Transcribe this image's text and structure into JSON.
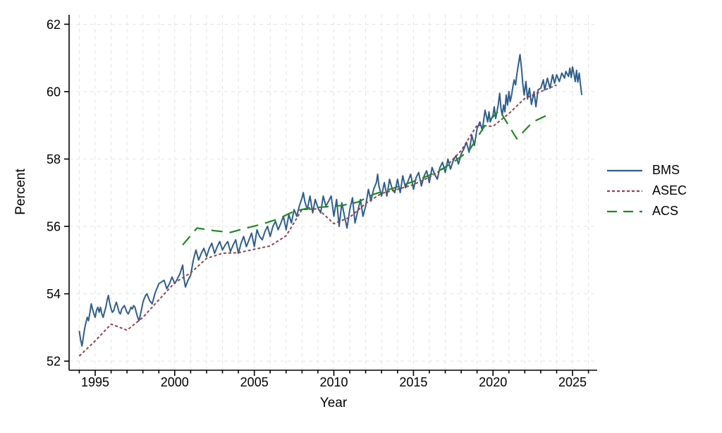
{
  "chart_data": {
    "type": "line",
    "xlabel": "Year",
    "ylabel": "Percent",
    "x_domain": [
      1993.36,
      2026.55
    ],
    "y_domain": [
      51.73,
      62.28
    ],
    "x_major_ticks": [
      1995,
      2000,
      2005,
      2010,
      2015,
      2020,
      2025
    ],
    "x_minor_ticks_range": [
      1994,
      2026
    ],
    "y_ticks": [
      52,
      54,
      56,
      58,
      60,
      62
    ],
    "grid": {
      "vertical": "every-year",
      "horizontal": "every-y-tick",
      "color": "#e4e4e4",
      "dash": "5 5"
    },
    "legend_position": "right-outside",
    "axis_color": "#000000",
    "series": [
      {
        "name": "BMS",
        "color": "#2f5e8d",
        "dash": "solid",
        "width": 2,
        "points": [
          [
            1994.0,
            52.9
          ],
          [
            1994.08,
            52.65
          ],
          [
            1994.17,
            52.45
          ],
          [
            1994.25,
            52.7
          ],
          [
            1994.33,
            52.95
          ],
          [
            1994.42,
            53.15
          ],
          [
            1994.5,
            53.3
          ],
          [
            1994.58,
            53.2
          ],
          [
            1994.67,
            53.45
          ],
          [
            1994.75,
            53.7
          ],
          [
            1994.83,
            53.55
          ],
          [
            1994.92,
            53.4
          ],
          [
            1995.0,
            53.3
          ],
          [
            1995.08,
            53.5
          ],
          [
            1995.17,
            53.6
          ],
          [
            1995.25,
            53.45
          ],
          [
            1995.33,
            53.6
          ],
          [
            1995.42,
            53.4
          ],
          [
            1995.5,
            53.3
          ],
          [
            1995.58,
            53.45
          ],
          [
            1995.67,
            53.6
          ],
          [
            1995.75,
            53.8
          ],
          [
            1995.83,
            53.95
          ],
          [
            1995.92,
            53.7
          ],
          [
            1996.0,
            53.55
          ],
          [
            1996.08,
            53.45
          ],
          [
            1996.17,
            53.5
          ],
          [
            1996.25,
            53.65
          ],
          [
            1996.33,
            53.75
          ],
          [
            1996.42,
            53.6
          ],
          [
            1996.5,
            53.45
          ],
          [
            1996.58,
            53.4
          ],
          [
            1996.67,
            53.55
          ],
          [
            1996.75,
            53.6
          ],
          [
            1996.83,
            53.65
          ],
          [
            1996.92,
            53.55
          ],
          [
            1997.0,
            53.45
          ],
          [
            1997.08,
            53.4
          ],
          [
            1997.17,
            53.5
          ],
          [
            1997.25,
            53.6
          ],
          [
            1997.33,
            53.55
          ],
          [
            1997.42,
            53.65
          ],
          [
            1997.5,
            53.6
          ],
          [
            1997.58,
            53.45
          ],
          [
            1997.67,
            53.3
          ],
          [
            1997.75,
            53.2
          ],
          [
            1997.83,
            53.35
          ],
          [
            1997.92,
            53.55
          ],
          [
            1998.0,
            53.75
          ],
          [
            1998.08,
            53.85
          ],
          [
            1998.17,
            53.95
          ],
          [
            1998.25,
            54.0
          ],
          [
            1998.33,
            53.9
          ],
          [
            1998.42,
            53.8
          ],
          [
            1998.5,
            53.75
          ],
          [
            1998.58,
            53.7
          ],
          [
            1998.67,
            53.85
          ],
          [
            1998.75,
            54.0
          ],
          [
            1998.83,
            54.1
          ],
          [
            1998.92,
            54.2
          ],
          [
            1999.0,
            54.3
          ],
          [
            1999.17,
            54.35
          ],
          [
            1999.33,
            54.4
          ],
          [
            1999.5,
            54.15
          ],
          [
            1999.67,
            54.3
          ],
          [
            1999.83,
            54.5
          ],
          [
            2000.0,
            54.3
          ],
          [
            2000.17,
            54.45
          ],
          [
            2000.33,
            54.6
          ],
          [
            2000.5,
            54.85
          ],
          [
            2000.58,
            54.45
          ],
          [
            2000.67,
            54.2
          ],
          [
            2000.83,
            54.4
          ],
          [
            2001.0,
            54.55
          ],
          [
            2001.17,
            55.0
          ],
          [
            2001.33,
            55.3
          ],
          [
            2001.5,
            55.0
          ],
          [
            2001.67,
            55.2
          ],
          [
            2001.83,
            55.35
          ],
          [
            2002.0,
            55.1
          ],
          [
            2002.17,
            55.35
          ],
          [
            2002.33,
            55.5
          ],
          [
            2002.5,
            55.2
          ],
          [
            2002.67,
            55.4
          ],
          [
            2002.83,
            55.55
          ],
          [
            2003.0,
            55.3
          ],
          [
            2003.17,
            55.45
          ],
          [
            2003.33,
            55.55
          ],
          [
            2003.5,
            55.25
          ],
          [
            2003.67,
            55.45
          ],
          [
            2003.83,
            55.6
          ],
          [
            2004.0,
            55.2
          ],
          [
            2004.17,
            55.5
          ],
          [
            2004.33,
            55.7
          ],
          [
            2004.5,
            55.4
          ],
          [
            2004.67,
            55.6
          ],
          [
            2004.83,
            55.8
          ],
          [
            2005.0,
            55.4
          ],
          [
            2005.17,
            55.9
          ],
          [
            2005.33,
            55.7
          ],
          [
            2005.5,
            55.6
          ],
          [
            2005.67,
            55.85
          ],
          [
            2005.83,
            56.0
          ],
          [
            2006.0,
            55.7
          ],
          [
            2006.17,
            56.0
          ],
          [
            2006.33,
            56.15
          ],
          [
            2006.5,
            55.9
          ],
          [
            2006.67,
            56.1
          ],
          [
            2006.83,
            56.3
          ],
          [
            2007.0,
            55.9
          ],
          [
            2007.17,
            56.35
          ],
          [
            2007.33,
            56.1
          ],
          [
            2007.5,
            56.5
          ],
          [
            2007.67,
            56.3
          ],
          [
            2007.83,
            56.6
          ],
          [
            2008.0,
            56.85
          ],
          [
            2008.08,
            57.0
          ],
          [
            2008.17,
            56.75
          ],
          [
            2008.33,
            56.5
          ],
          [
            2008.5,
            56.9
          ],
          [
            2008.67,
            56.4
          ],
          [
            2008.83,
            56.8
          ],
          [
            2009.0,
            56.55
          ],
          [
            2009.17,
            56.4
          ],
          [
            2009.33,
            56.9
          ],
          [
            2009.5,
            56.6
          ],
          [
            2009.67,
            56.75
          ],
          [
            2009.83,
            56.9
          ],
          [
            2010.0,
            56.3
          ],
          [
            2010.17,
            56.8
          ],
          [
            2010.33,
            56.0
          ],
          [
            2010.5,
            56.7
          ],
          [
            2010.67,
            56.3
          ],
          [
            2010.83,
            55.95
          ],
          [
            2011.0,
            56.5
          ],
          [
            2011.17,
            56.85
          ],
          [
            2011.33,
            56.1
          ],
          [
            2011.5,
            56.45
          ],
          [
            2011.67,
            56.8
          ],
          [
            2011.83,
            56.3
          ],
          [
            2012.0,
            56.6
          ],
          [
            2012.17,
            57.1
          ],
          [
            2012.33,
            56.75
          ],
          [
            2012.5,
            57.1
          ],
          [
            2012.67,
            57.3
          ],
          [
            2012.75,
            57.55
          ],
          [
            2012.83,
            57.2
          ],
          [
            2013.0,
            56.9
          ],
          [
            2013.17,
            57.3
          ],
          [
            2013.33,
            56.9
          ],
          [
            2013.5,
            57.4
          ],
          [
            2013.67,
            57.1
          ],
          [
            2013.83,
            57.0
          ],
          [
            2014.0,
            57.4
          ],
          [
            2014.17,
            57.0
          ],
          [
            2014.33,
            57.5
          ],
          [
            2014.5,
            57.15
          ],
          [
            2014.67,
            57.35
          ],
          [
            2014.83,
            57.55
          ],
          [
            2015.0,
            57.1
          ],
          [
            2015.17,
            57.45
          ],
          [
            2015.33,
            57.6
          ],
          [
            2015.5,
            57.2
          ],
          [
            2015.67,
            57.5
          ],
          [
            2015.83,
            57.65
          ],
          [
            2016.0,
            57.3
          ],
          [
            2016.17,
            57.75
          ],
          [
            2016.33,
            57.55
          ],
          [
            2016.5,
            57.4
          ],
          [
            2016.67,
            57.75
          ],
          [
            2016.83,
            57.9
          ],
          [
            2017.0,
            57.6
          ],
          [
            2017.17,
            58.0
          ],
          [
            2017.33,
            57.7
          ],
          [
            2017.5,
            57.95
          ],
          [
            2017.67,
            58.1
          ],
          [
            2017.83,
            57.85
          ],
          [
            2018.0,
            58.15
          ],
          [
            2018.17,
            58.3
          ],
          [
            2018.33,
            58.5
          ],
          [
            2018.5,
            58.2
          ],
          [
            2018.67,
            58.7
          ],
          [
            2018.83,
            58.4
          ],
          [
            2019.0,
            58.9
          ],
          [
            2019.17,
            59.1
          ],
          [
            2019.33,
            58.85
          ],
          [
            2019.5,
            59.45
          ],
          [
            2019.67,
            59.1
          ],
          [
            2019.75,
            59.4
          ],
          [
            2019.83,
            59.1
          ],
          [
            2020.0,
            59.3
          ],
          [
            2020.08,
            59.55
          ],
          [
            2020.17,
            59.2
          ],
          [
            2020.33,
            59.6
          ],
          [
            2020.42,
            59.95
          ],
          [
            2020.5,
            59.5
          ],
          [
            2020.58,
            59.3
          ],
          [
            2020.67,
            59.6
          ],
          [
            2020.75,
            59.4
          ],
          [
            2020.83,
            59.9
          ],
          [
            2020.92,
            59.6
          ],
          [
            2021.0,
            60.0
          ],
          [
            2021.08,
            59.7
          ],
          [
            2021.17,
            59.9
          ],
          [
            2021.25,
            60.15
          ],
          [
            2021.33,
            60.35
          ],
          [
            2021.42,
            60.2
          ],
          [
            2021.5,
            60.5
          ],
          [
            2021.58,
            60.75
          ],
          [
            2021.7,
            61.1
          ],
          [
            2021.79,
            60.7
          ],
          [
            2021.87,
            60.25
          ],
          [
            2021.96,
            59.9
          ],
          [
            2022.07,
            60.3
          ],
          [
            2022.17,
            59.78
          ],
          [
            2022.29,
            60.1
          ],
          [
            2022.42,
            59.62
          ],
          [
            2022.58,
            60.0
          ],
          [
            2022.7,
            59.55
          ],
          [
            2022.83,
            60.05
          ],
          [
            2023.0,
            60.1
          ],
          [
            2023.17,
            60.35
          ],
          [
            2023.25,
            60.05
          ],
          [
            2023.42,
            60.4
          ],
          [
            2023.58,
            60.1
          ],
          [
            2023.75,
            60.5
          ],
          [
            2023.87,
            60.25
          ],
          [
            2024.0,
            60.5
          ],
          [
            2024.17,
            60.3
          ],
          [
            2024.33,
            60.55
          ],
          [
            2024.5,
            60.4
          ],
          [
            2024.58,
            60.6
          ],
          [
            2024.75,
            60.45
          ],
          [
            2024.83,
            60.7
          ],
          [
            2024.92,
            60.42
          ],
          [
            2025.0,
            60.73
          ],
          [
            2025.08,
            60.55
          ],
          [
            2025.17,
            60.3
          ],
          [
            2025.25,
            60.63
          ],
          [
            2025.33,
            60.28
          ],
          [
            2025.42,
            60.55
          ],
          [
            2025.5,
            60.2
          ],
          [
            2025.58,
            59.9
          ]
        ]
      },
      {
        "name": "ASEC",
        "color": "#98424e",
        "dash": "4 3",
        "width": 2,
        "points": [
          [
            1994,
            52.15
          ],
          [
            1995,
            52.6
          ],
          [
            1996,
            53.1
          ],
          [
            1997,
            52.92
          ],
          [
            1998,
            53.3
          ],
          [
            1999,
            53.82
          ],
          [
            2000,
            54.33
          ],
          [
            2001,
            54.62
          ],
          [
            2002,
            55.05
          ],
          [
            2003,
            55.2
          ],
          [
            2004,
            55.22
          ],
          [
            2005,
            55.32
          ],
          [
            2006,
            55.42
          ],
          [
            2007,
            55.72
          ],
          [
            2008,
            56.5
          ],
          [
            2009,
            56.52
          ],
          [
            2010,
            56.08
          ],
          [
            2011,
            56.27
          ],
          [
            2012,
            56.68
          ],
          [
            2013,
            56.98
          ],
          [
            2014,
            57.1
          ],
          [
            2015,
            57.24
          ],
          [
            2016,
            57.46
          ],
          [
            2017,
            57.75
          ],
          [
            2018,
            58.25
          ],
          [
            2019,
            59.0
          ],
          [
            2020,
            58.97
          ],
          [
            2021,
            59.35
          ],
          [
            2022,
            59.8
          ],
          [
            2023,
            60.0
          ],
          [
            2024,
            60.2
          ]
        ]
      },
      {
        "name": "ACS",
        "color": "#1e8a22",
        "dash": "16 10",
        "width": 2.2,
        "points": [
          [
            2000.5,
            55.45
          ],
          [
            2001.4,
            55.95
          ],
          [
            2002.5,
            55.87
          ],
          [
            2003.5,
            55.82
          ],
          [
            2004.5,
            55.95
          ],
          [
            2005.5,
            56.07
          ],
          [
            2006.5,
            56.22
          ],
          [
            2007.5,
            56.45
          ],
          [
            2008.5,
            56.55
          ],
          [
            2009.5,
            56.58
          ],
          [
            2010.5,
            56.62
          ],
          [
            2011.5,
            56.72
          ],
          [
            2012.5,
            56.95
          ],
          [
            2013.5,
            57.1
          ],
          [
            2014.5,
            57.25
          ],
          [
            2015.5,
            57.42
          ],
          [
            2016.5,
            57.62
          ],
          [
            2017.5,
            57.9
          ],
          [
            2018.5,
            58.25
          ],
          [
            2019.5,
            59.0
          ],
          [
            2020.4,
            59.45
          ],
          [
            2021.5,
            58.6
          ],
          [
            2022.5,
            59.1
          ],
          [
            2023.4,
            59.3
          ]
        ]
      }
    ]
  }
}
